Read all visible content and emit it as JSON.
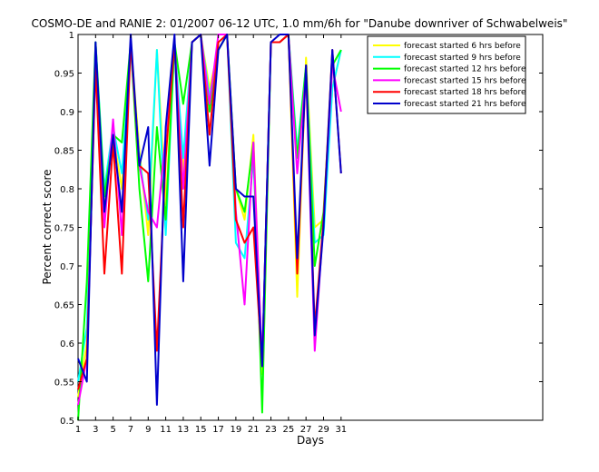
{
  "chart_data": {
    "type": "line",
    "title": "COSMO-DE and RANIE 2: 01/2007 06-12 UTC, 1.0 mm/6h for \"Danube downriver of Schwabelweis\"",
    "xlabel": "Days",
    "ylabel": "Percent correct score",
    "xlim": [
      1,
      54
    ],
    "ylim": [
      0.5,
      1.0
    ],
    "xticks": [
      1,
      3,
      5,
      7,
      9,
      11,
      13,
      15,
      17,
      19,
      21,
      23,
      25,
      27,
      29,
      31
    ],
    "yticks": [
      0.5,
      0.55,
      0.6,
      0.65,
      0.7,
      0.75,
      0.8,
      0.85,
      0.9,
      0.95,
      1
    ],
    "ytick_labels": [
      "0.5",
      "0.55",
      "0.6",
      "0.65",
      "0.7",
      "0.75",
      "0.8",
      "0.85",
      "0.9",
      "0.95",
      "1"
    ],
    "legend_position": "top-right",
    "grid": false,
    "x": [
      1,
      2,
      3,
      4,
      5,
      6,
      7,
      8,
      9,
      10,
      11,
      12,
      13,
      14,
      15,
      16,
      17,
      18,
      19,
      20,
      21,
      22,
      23,
      24,
      25,
      26,
      27,
      28,
      29,
      30,
      31
    ],
    "series": [
      {
        "name": "forecast started 6 hrs before",
        "color": "#ffff00",
        "values": [
          0.53,
          0.6,
          0.99,
          0.78,
          0.87,
          0.8,
          0.99,
          0.85,
          0.74,
          0.98,
          0.78,
          0.99,
          0.82,
          0.99,
          1.0,
          0.93,
          0.98,
          1.0,
          0.8,
          0.76,
          0.87,
          0.56,
          0.99,
          0.99,
          1.0,
          0.66,
          0.97,
          0.75,
          0.76,
          0.93,
          0.98
        ]
      },
      {
        "name": "forecast started 9 hrs before",
        "color": "#00ffff",
        "values": [
          0.55,
          0.62,
          0.99,
          0.8,
          0.88,
          0.82,
          0.98,
          0.84,
          0.76,
          0.98,
          0.74,
          0.99,
          0.84,
          0.99,
          1.0,
          0.92,
          0.98,
          1.0,
          0.73,
          0.71,
          0.84,
          0.57,
          0.99,
          0.99,
          1.0,
          0.85,
          0.96,
          0.73,
          0.74,
          0.93,
          0.98
        ]
      },
      {
        "name": "forecast started 12 hrs before",
        "color": "#00ff00",
        "values": [
          0.5,
          0.68,
          0.99,
          0.79,
          0.87,
          0.86,
          0.99,
          0.8,
          0.68,
          0.88,
          0.76,
          0.99,
          0.91,
          0.99,
          1.0,
          0.9,
          0.98,
          1.0,
          0.8,
          0.77,
          0.86,
          0.51,
          0.99,
          0.99,
          1.0,
          0.84,
          0.96,
          0.7,
          0.77,
          0.96,
          0.98
        ]
      },
      {
        "name": "forecast started 15 hrs before",
        "color": "#ff00ff",
        "values": [
          0.52,
          0.58,
          0.96,
          0.75,
          0.89,
          0.74,
          0.99,
          0.83,
          0.77,
          0.75,
          0.87,
          0.99,
          0.8,
          0.99,
          1.0,
          0.91,
          1.0,
          1.0,
          0.77,
          0.65,
          0.86,
          0.57,
          0.99,
          0.99,
          1.0,
          0.82,
          0.95,
          0.59,
          0.76,
          0.96,
          0.9
        ]
      },
      {
        "name": "forecast started 18 hrs before",
        "color": "#ff0000",
        "values": [
          0.54,
          0.58,
          0.96,
          0.69,
          0.86,
          0.69,
          0.99,
          0.83,
          0.82,
          0.59,
          0.84,
          0.99,
          0.75,
          0.99,
          1.0,
          0.87,
          0.99,
          1.0,
          0.76,
          0.73,
          0.75,
          0.57,
          0.99,
          0.99,
          1.0,
          0.69,
          0.96,
          0.62,
          0.76,
          0.98,
          0.82
        ]
      },
      {
        "name": "forecast started 21 hrs before",
        "color": "#0000cc",
        "values": [
          0.58,
          0.55,
          0.99,
          0.77,
          0.87,
          0.77,
          1.0,
          0.83,
          0.88,
          0.52,
          0.88,
          1.0,
          0.68,
          0.99,
          1.0,
          0.83,
          0.98,
          1.0,
          0.8,
          0.79,
          0.79,
          0.57,
          0.99,
          1.0,
          1.0,
          0.71,
          0.96,
          0.61,
          0.75,
          0.98,
          0.82
        ]
      }
    ]
  }
}
